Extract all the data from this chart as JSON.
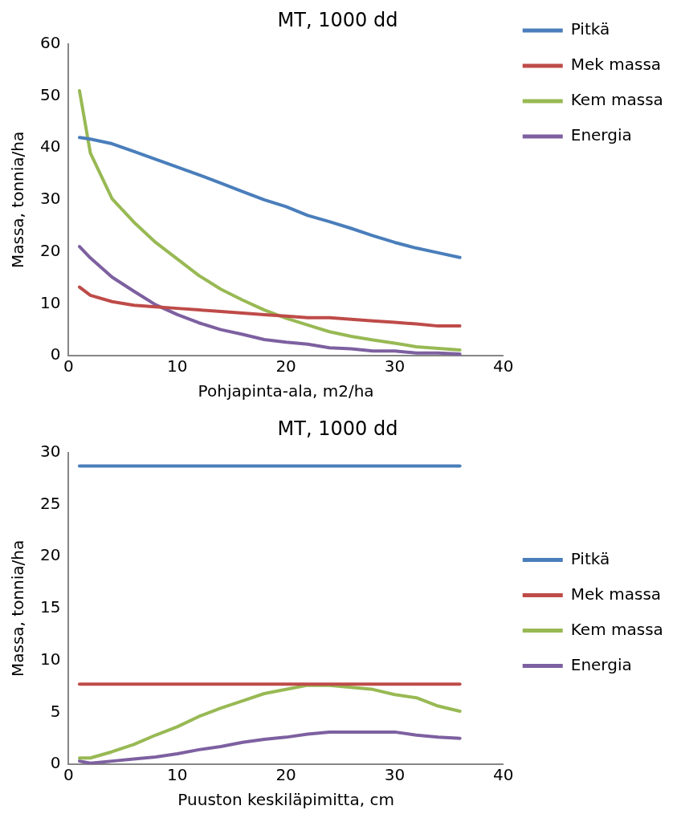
{
  "chart_data": [
    {
      "type": "line",
      "title": "MT, 1000 dd",
      "xlabel": "Pohjapinta-ala, m2/ha",
      "ylabel": "Massa, tonnia/ha",
      "x": [
        1,
        2,
        4,
        6,
        8,
        10,
        12,
        14,
        16,
        18,
        20,
        22,
        24,
        26,
        28,
        30,
        32,
        34,
        36
      ],
      "xlim": [
        0,
        40
      ],
      "xticks": [
        0,
        10,
        20,
        30,
        40
      ],
      "ylim": [
        0,
        60
      ],
      "yticks": [
        0,
        10,
        20,
        30,
        40,
        50,
        60
      ],
      "grid": false,
      "legend": "top right",
      "marker": "none",
      "series": [
        {
          "name": "Pitkä",
          "color": "#4a7ebb",
          "values": [
            42,
            41.7,
            40.8,
            39.3,
            37.8,
            36.3,
            34.8,
            33.2,
            31.6,
            30,
            28.7,
            27,
            25.8,
            24.5,
            23.1,
            21.8,
            20.7,
            19.8,
            18.9
          ]
        },
        {
          "name": "Mek massa",
          "color": "#be4b48",
          "values": [
            13.2,
            11.6,
            10.4,
            9.7,
            9.4,
            9.1,
            8.8,
            8.5,
            8.2,
            7.9,
            7.6,
            7.3,
            7.3,
            7,
            6.7,
            6.4,
            6.1,
            5.7,
            5.7
          ]
        },
        {
          "name": "Kem massa",
          "color": "#98b954",
          "values": [
            51,
            39,
            30.2,
            25.7,
            21.8,
            18.6,
            15.4,
            12.8,
            10.7,
            8.8,
            7.2,
            5.9,
            4.6,
            3.7,
            3,
            2.4,
            1.7,
            1.4,
            1.1
          ]
        },
        {
          "name": "Energia",
          "color": "#7d60a0",
          "values": [
            21,
            18.8,
            15.1,
            12.4,
            9.8,
            7.9,
            6.3,
            5,
            4.1,
            3.1,
            2.6,
            2.2,
            1.5,
            1.3,
            0.9,
            0.9,
            0.5,
            0.5,
            0.3
          ]
        }
      ]
    },
    {
      "type": "line",
      "title": "MT, 1000 dd",
      "xlabel": "Puuston keskiläpimitta, cm",
      "ylabel": "Massa, tonnia/ha",
      "x": [
        1,
        2,
        4,
        6,
        8,
        10,
        12,
        14,
        16,
        18,
        20,
        22,
        24,
        26,
        28,
        30,
        32,
        34,
        36
      ],
      "xlim": [
        0,
        40
      ],
      "xticks": [
        0,
        10,
        20,
        30,
        40
      ],
      "ylim": [
        0,
        30
      ],
      "yticks": [
        0,
        5,
        10,
        15,
        20,
        25,
        30
      ],
      "grid": false,
      "legend": "right",
      "marker": "none",
      "series": [
        {
          "name": "Pitkä",
          "color": "#4a7ebb",
          "values": [
            28.7,
            28.7,
            28.7,
            28.7,
            28.7,
            28.7,
            28.7,
            28.7,
            28.7,
            28.7,
            28.7,
            28.7,
            28.7,
            28.7,
            28.7,
            28.7,
            28.7,
            28.7,
            28.7
          ]
        },
        {
          "name": "Mek massa",
          "color": "#be4b48",
          "values": [
            7.7,
            7.7,
            7.7,
            7.7,
            7.7,
            7.7,
            7.7,
            7.7,
            7.7,
            7.7,
            7.7,
            7.7,
            7.7,
            7.7,
            7.7,
            7.7,
            7.7,
            7.7,
            7.7
          ]
        },
        {
          "name": "Kem massa",
          "color": "#98b954",
          "values": [
            0.6,
            0.6,
            1.2,
            1.9,
            2.8,
            3.6,
            4.6,
            5.4,
            6.1,
            6.8,
            7.2,
            7.6,
            7.6,
            7.4,
            7.2,
            6.7,
            6.4,
            5.6,
            5.1
          ]
        },
        {
          "name": "Energia",
          "color": "#7d60a0",
          "values": [
            0.3,
            0.1,
            0.3,
            0.5,
            0.7,
            1,
            1.4,
            1.7,
            2.1,
            2.4,
            2.6,
            2.9,
            3.1,
            3.1,
            3.1,
            3.1,
            2.8,
            2.6,
            2.5
          ]
        }
      ]
    }
  ]
}
